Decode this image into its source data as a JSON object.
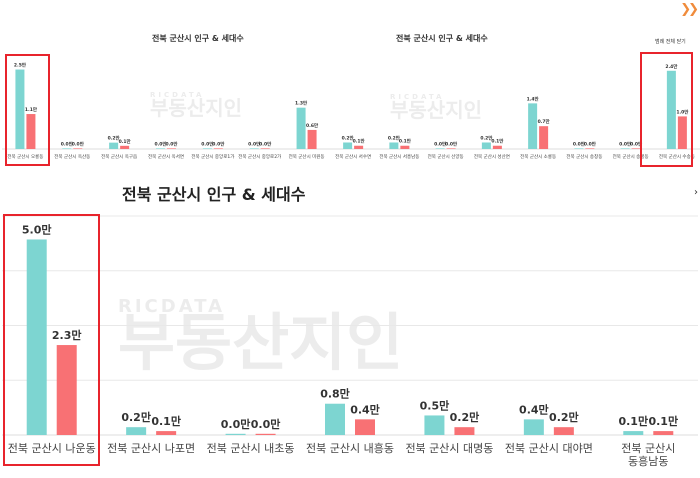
{
  "colors": {
    "population": "#7dd5d1",
    "households": "#f87174",
    "highlight": "#e8242c",
    "grid": "#e8e8e8"
  },
  "top_left": {
    "title": "전북 군산시 인구 & 세대수"
  },
  "top_right": {
    "title": "전북 군산시 인구 & 세대수",
    "close_label": "범례 전체 닫기"
  },
  "main": {
    "title": "전북 군산시 인구 & 세대수"
  },
  "watermark": {
    "sub": "RICDATA",
    "main": "부동산지인"
  },
  "corner_icon": "❯❯",
  "right_arrow": "›",
  "chart_data": [
    {
      "type": "bar",
      "title": "전북 군산시 인구 & 세대수",
      "categories": [
        "전북 군산시 오룡동",
        "전북 군산시 옥산동",
        "전북 군산시 옥구읍",
        "전북 군산시 옥서면",
        "전북 군산시 중앙로1가",
        "전북 군산시 중앙로2가",
        "전북 군산시 미원동"
      ],
      "series": [
        {
          "values": [
            2.5,
            0.0,
            0.2,
            0.0,
            0.0,
            0.0,
            1.3
          ],
          "labels": [
            "2.5만",
            "0.0만",
            "0.2만",
            "0.0만",
            "0.0만",
            "0.0만",
            "1.3만"
          ]
        },
        {
          "values": [
            1.1,
            0.0,
            0.1,
            0.0,
            0.0,
            0.0,
            0.6
          ],
          "labels": [
            "1.1만",
            "0.0만",
            "0.1만",
            "0.0만",
            "0.0만",
            "0.0만",
            "0.6만"
          ]
        }
      ],
      "ylim": [
        0,
        2.8
      ]
    },
    {
      "type": "bar",
      "title": "전북 군산시 인구 & 세대수",
      "categories": [
        "전북 군산시 서수면",
        "전북 군산시 서흥남동",
        "전북 군산시 선양동",
        "전북 군산시 성산면",
        "전북 군산시 소룡동",
        "전북 군산시 송창동",
        "전북 군산시 송풍동",
        "전북 군산시 수송동"
      ],
      "series": [
        {
          "values": [
            0.2,
            0.2,
            0.0,
            0.2,
            1.4,
            0.0,
            0.0,
            2.4
          ],
          "labels": [
            "0.2만",
            "0.2만",
            "0.0만",
            "0.2만",
            "1.4만",
            "0.0만",
            "0.0만",
            "2.4만"
          ]
        },
        {
          "values": [
            0.1,
            0.1,
            0.0,
            0.1,
            0.7,
            0.0,
            0.0,
            1.0
          ],
          "labels": [
            "0.1만",
            "0.1만",
            "0.0만",
            "0.1만",
            "0.7만",
            "0.0만",
            "0.0만",
            "1.0만"
          ]
        }
      ],
      "ylim": [
        0,
        2.7
      ]
    },
    {
      "type": "bar",
      "title": "전북 군산시 인구 & 세대수",
      "categories": [
        "전북 군산시 나운동",
        "전북 군산시 나포면",
        "전북 군산시 내초동",
        "전북 군산시 내흥동",
        "전북 군산시 대명동",
        "전북 군산시 대야면",
        "전북 군산시\n동흥남동"
      ],
      "series": [
        {
          "values": [
            5.0,
            0.2,
            0.0,
            0.8,
            0.5,
            0.4,
            0.1
          ],
          "labels": [
            "5.0만",
            "0.2만",
            "0.0만",
            "0.8만",
            "0.5만",
            "0.4만",
            "0.1만"
          ]
        },
        {
          "values": [
            2.3,
            0.1,
            0.0,
            0.4,
            0.2,
            0.2,
            0.1
          ],
          "labels": [
            "2.3만",
            "0.1만",
            "0.0만",
            "0.4만",
            "0.2만",
            "0.2만",
            "0.1만"
          ]
        }
      ],
      "ylim": [
        0,
        5.6
      ],
      "grid": true
    }
  ]
}
